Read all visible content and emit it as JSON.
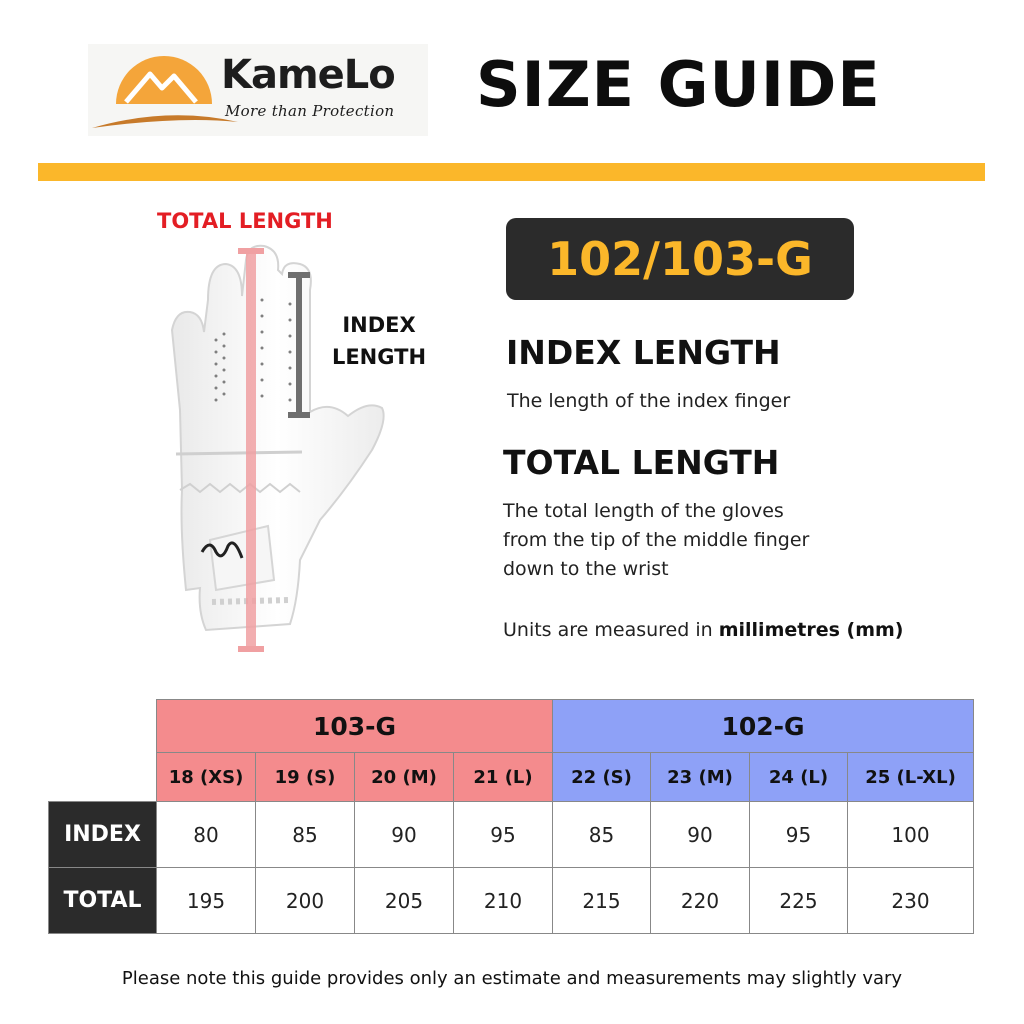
{
  "brand": {
    "name": "KameLo",
    "tagline": "More than Protection",
    "colors": {
      "sun": "#f4a53a",
      "swoosh": "#c77a2a"
    }
  },
  "title": "SIZE GUIDE",
  "accent_color": "#fbb72a",
  "diagram": {
    "total_label": "TOTAL LENGTH",
    "index_label": "INDEX LENGTH",
    "total_color": "#e31e24"
  },
  "model": "102/103-G",
  "definitions": {
    "index_title": "INDEX LENGTH",
    "index_text": "The length of the index finger",
    "total_title": "TOTAL LENGTH",
    "total_line1": "The total length of the gloves",
    "total_line2": "from the tip of the middle finger",
    "total_line3": "down to the wrist",
    "units_prefix": "Units are measured in",
    "units_bold": "millimetres (mm)"
  },
  "table": {
    "groups": [
      {
        "name": "103-G",
        "color": "#f48b8d"
      },
      {
        "name": "102-G",
        "color": "#8ea1f7"
      }
    ],
    "sizes": [
      "18 (XS)",
      "19 (S)",
      "20 (M)",
      "21 (L)",
      "22 (S)",
      "23 (M)",
      "24 (L)",
      "25 (L-XL)"
    ],
    "rows": [
      {
        "label": "INDEX",
        "values": [
          "80",
          "85",
          "90",
          "95",
          "85",
          "90",
          "95",
          "100"
        ]
      },
      {
        "label": "TOTAL",
        "values": [
          "195",
          "200",
          "205",
          "210",
          "215",
          "220",
          "225",
          "230"
        ]
      }
    ]
  },
  "note": "Please note this guide provides only an estimate and measurements may slightly vary"
}
